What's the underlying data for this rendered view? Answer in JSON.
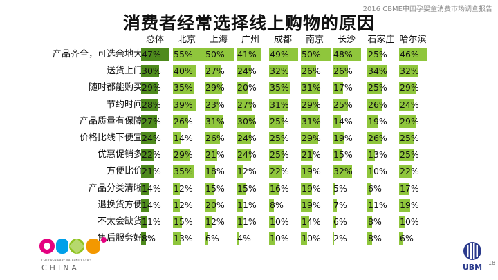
{
  "header": {
    "caption": "2016 CBME中国孕婴童消费市场调查报告",
    "page_number": "18"
  },
  "logos": {
    "cbme_mark": "CBME",
    "cbme_tagline": "CHILDREN BABY MATERNITY EXPO",
    "cbme_country": "CHINA",
    "ubm_mark": "UBM"
  },
  "colors": {
    "national_bar": "#4e8a1c",
    "city_bar": "#8fc63c"
  },
  "chart_data": {
    "type": "bar",
    "title": "消费者经常选择线上购物的原因",
    "unit": "%",
    "xlim": [
      0,
      100
    ],
    "categories": [
      "产品齐全，可选余地大",
      "送货上门",
      "随时都能购买",
      "节约时间",
      "产品质量有保障",
      "价格比线下便宜",
      "优惠促销多",
      "方便比价",
      "产品分类清晰",
      "退换货方便",
      "不太会缺货",
      "售后服务好"
    ],
    "series": [
      {
        "name": "总体",
        "values": [
          47,
          30,
          29,
          28,
          27,
          24,
          22,
          21,
          14,
          14,
          11,
          8
        ]
      },
      {
        "name": "北京",
        "values": [
          55,
          40,
          35,
          39,
          26,
          14,
          29,
          35,
          12,
          12,
          15,
          13
        ]
      },
      {
        "name": "上海",
        "values": [
          50,
          27,
          29,
          23,
          31,
          26,
          21,
          18,
          15,
          20,
          12,
          6
        ]
      },
      {
        "name": "广州",
        "values": [
          41,
          24,
          20,
          27,
          30,
          24,
          24,
          12,
          15,
          11,
          11,
          4
        ]
      },
      {
        "name": "成都",
        "values": [
          49,
          32,
          35,
          31,
          25,
          25,
          25,
          22,
          16,
          8,
          10,
          10
        ]
      },
      {
        "name": "南京",
        "values": [
          50,
          26,
          31,
          29,
          31,
          29,
          21,
          19,
          19,
          19,
          14,
          10
        ]
      },
      {
        "name": "长沙",
        "values": [
          48,
          26,
          17,
          25,
          14,
          19,
          15,
          32,
          5,
          7,
          6,
          2
        ]
      },
      {
        "name": "石家庄",
        "values": [
          25,
          34,
          25,
          26,
          19,
          26,
          13,
          10,
          6,
          11,
          8,
          8
        ]
      },
      {
        "name": "哈尔滨",
        "values": [
          46,
          32,
          29,
          24,
          29,
          25,
          25,
          22,
          17,
          19,
          10,
          6
        ]
      }
    ]
  }
}
